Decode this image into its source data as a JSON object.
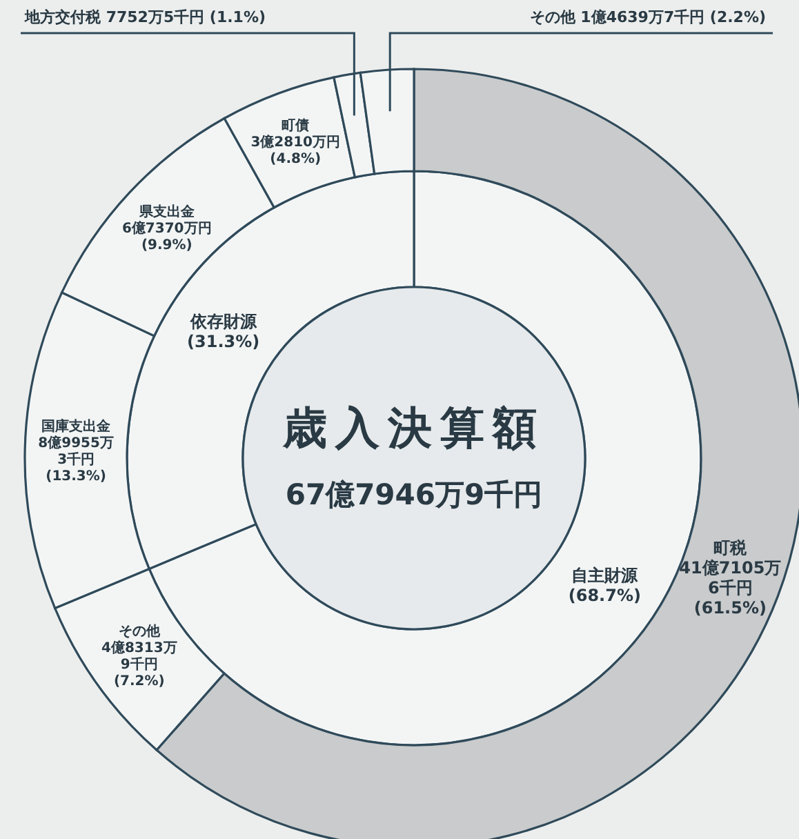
{
  "chart_data": [
    {
      "type": "donut",
      "title": "歳入決算額",
      "subtitle": "67億7946万9千円",
      "categories": [
        "自主財源",
        "依存財源"
      ],
      "values": [
        68.7,
        31.3
      ],
      "colors": [
        "#f3f5f5",
        "#f3f5f5"
      ],
      "value_labels": [
        "(68.7%)",
        "(31.3%)"
      ]
    },
    {
      "type": "donut",
      "categories": [
        "町税\n41億7105万6千円",
        "その他\n4億8313万9千円",
        "国庫支出金\n8億9955万3千円",
        "県支出金\n6億7370万円",
        "町債\n3億2810万円",
        "地方交付税\n7752万5千円",
        "その他\n1億4639万7千円"
      ],
      "values": [
        61.5,
        7.2,
        13.3,
        9.9,
        4.8,
        1.1,
        2.2
      ],
      "colors": [
        "#c9cbcc",
        "#f3f5f5",
        "#f3f5f5",
        "#f3f5f5",
        "#f3f5f5",
        "#f3f5f5",
        "#f3f5f5"
      ],
      "value_labels": [
        "(61.5%)",
        "(7.2%)",
        "(13.3%)",
        "(9.9%)",
        "(4.8%)",
        "(1.1%)",
        "(2.2%)"
      ]
    }
  ]
}
